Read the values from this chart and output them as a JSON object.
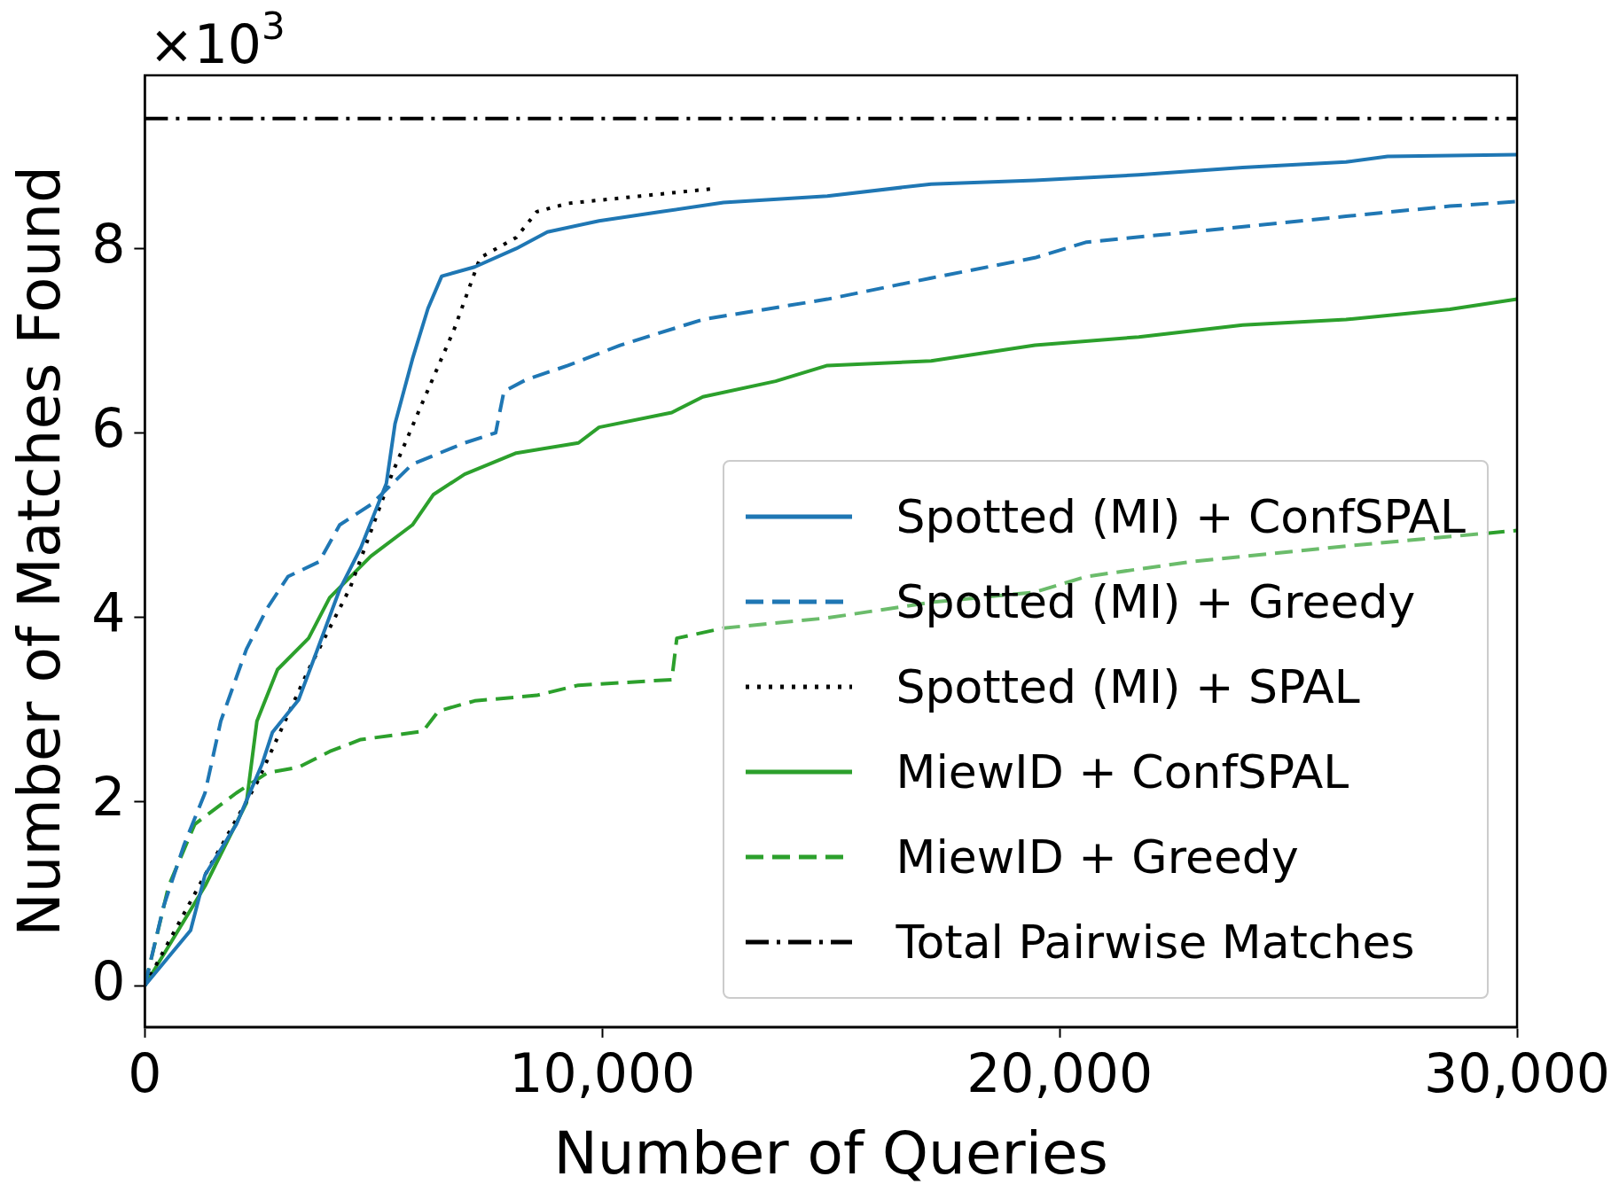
{
  "chart_data": {
    "type": "line",
    "xlabel": "Number of Queries",
    "ylabel": "Number of Matches Found",
    "annotations": [
      "×10$^{3}$"
    ],
    "xlim": [
      0,
      30000
    ],
    "xticks": [
      0,
      {
        "value": 10000,
        "label": "10,000"
      },
      {
        "value": 20000,
        "label": "20,000"
      },
      {
        "value": 30000,
        "label": "30,000"
      }
    ],
    "ylim": [
      -0.45,
      9.88
    ],
    "yticks": [
      0,
      2,
      4,
      6,
      8
    ],
    "legend": "bottom right",
    "series": [
      {
        "name": "Spotted (MI) + ConfSPAL",
        "color": "#1f77b4",
        "line_style": "solid",
        "x": [
          0,
          1000,
          1315,
          2000,
          2560,
          2790,
          3360,
          3700,
          4260,
          4720,
          5280,
          5470,
          5850,
          6190,
          6490,
          7210,
          8120,
          8800,
          9930,
          11300,
          12650,
          14920,
          17190,
          19460,
          21730,
          24000,
          26260,
          27170,
          30000
        ],
        "values": [
          0,
          0.6,
          1.2,
          1.75,
          2.4,
          2.75,
          3.1,
          3.55,
          4.3,
          4.75,
          5.45,
          6.1,
          6.8,
          7.35,
          7.7,
          7.8,
          8.0,
          8.18,
          8.3,
          8.4,
          8.5,
          8.57,
          8.7,
          8.74,
          8.8,
          8.88,
          8.94,
          9.0,
          9.02
        ]
      },
      {
        "name": "Spotted (MI) + Greedy",
        "color": "#1f77b4",
        "line_style": "dashed",
        "x": [
          0,
          410,
          860,
          1315,
          1660,
          2220,
          2680,
          3130,
          3810,
          4260,
          4940,
          5850,
          6990,
          7670,
          7850,
          8350,
          9250,
          10390,
          12200,
          14920,
          17190,
          19460,
          20590,
          22860,
          26260,
          28530,
          30000
        ],
        "values": [
          0,
          0.86,
          1.53,
          2.09,
          2.87,
          3.65,
          4.1,
          4.44,
          4.6,
          5.0,
          5.22,
          5.66,
          5.89,
          6.0,
          6.45,
          6.58,
          6.73,
          6.95,
          7.23,
          7.45,
          7.68,
          7.9,
          8.07,
          8.18,
          8.35,
          8.46,
          8.51
        ]
      },
      {
        "name": "Spotted (MI) + SPAL",
        "color": "#000000",
        "line_style": "dotted",
        "x": [
          0,
          1315,
          2450,
          3580,
          4490,
          5400,
          6080,
          6760,
          7330,
          8120,
          8570,
          9250,
          10840,
          12430
        ],
        "values": [
          0,
          1.2,
          2.2,
          3.43,
          4.32,
          5.55,
          6.34,
          7.12,
          7.9,
          8.12,
          8.4,
          8.49,
          8.57,
          8.65
        ]
      },
      {
        "name": "MiewID + ConfSPAL",
        "color": "#2ca02c",
        "line_style": "solid",
        "x": [
          0,
          1315,
          2220,
          2450,
          2900,
          3580,
          4040,
          4940,
          5850,
          6310,
          6990,
          8120,
          9480,
          9930,
          11520,
          12200,
          13790,
          14920,
          17190,
          19460,
          21730,
          24000,
          26260,
          28530,
          30000
        ],
        "values": [
          0,
          1.08,
          1.98,
          2.87,
          3.43,
          3.77,
          4.21,
          4.66,
          5.0,
          5.33,
          5.55,
          5.78,
          5.89,
          6.06,
          6.22,
          6.39,
          6.56,
          6.73,
          6.78,
          6.95,
          7.04,
          7.17,
          7.23,
          7.34,
          7.45
        ]
      },
      {
        "name": "MiewID + Greedy",
        "color": "#2ca02c",
        "line_style": "dashed",
        "x": [
          0,
          520,
          1090,
          2000,
          2680,
          3360,
          4040,
          4720,
          6080,
          6420,
          7210,
          8570,
          9480,
          11520,
          11630,
          12650,
          14920,
          17190,
          19460,
          20590,
          22860,
          26260,
          30000
        ],
        "values": [
          0,
          1.08,
          1.75,
          2.09,
          2.31,
          2.37,
          2.54,
          2.67,
          2.76,
          2.98,
          3.09,
          3.15,
          3.26,
          3.32,
          3.77,
          3.88,
          3.99,
          4.16,
          4.27,
          4.44,
          4.6,
          4.77,
          4.94
        ]
      }
    ],
    "ref_lines": [
      {
        "axis": "y",
        "value": 9.41,
        "label": "Total Pairwise Matches",
        "color": "#000000",
        "line_style": "dashdot"
      }
    ]
  }
}
